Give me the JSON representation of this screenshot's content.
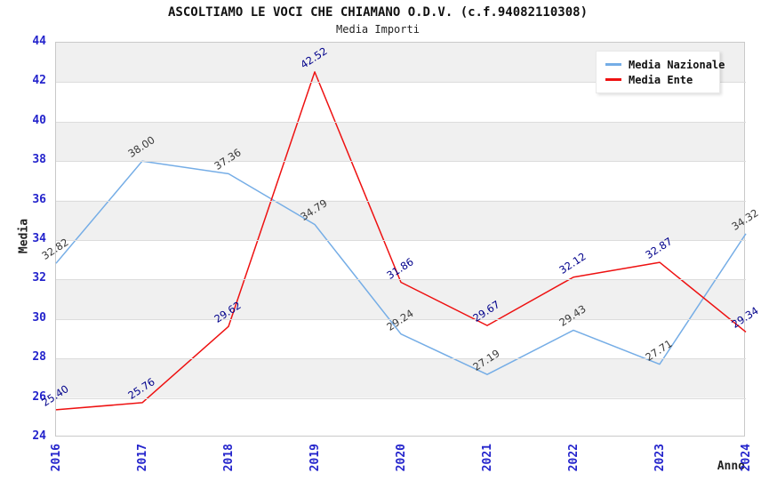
{
  "chart_data": {
    "type": "line",
    "title": "ASCOLTIAMO LE VOCI CHE CHIAMANO O.D.V. (c.f.94082110308)",
    "subtitle": "Media Importi",
    "xlabel": "Anno",
    "ylabel": "Media",
    "categories": [
      "2016",
      "2017",
      "2018",
      "2019",
      "2020",
      "2021",
      "2022",
      "2023",
      "2024"
    ],
    "series": [
      {
        "name": "Media Nazionale",
        "color": "#75ade6",
        "label_color": "#3a3a3a",
        "values": [
          32.82,
          38.0,
          37.36,
          34.79,
          29.24,
          27.19,
          29.43,
          27.71,
          34.32
        ]
      },
      {
        "name": "Media Ente",
        "color": "#ee1111",
        "label_color": "#00008b",
        "values": [
          25.4,
          25.76,
          29.62,
          42.52,
          31.86,
          29.67,
          32.12,
          32.87,
          29.34
        ]
      }
    ],
    "ylim": [
      24,
      44
    ],
    "ytick_step": 2,
    "grid": true,
    "bands": true,
    "band_color": "#f0f0f0",
    "tick_label_color": "#2424cc",
    "legend_position": "top-right"
  }
}
